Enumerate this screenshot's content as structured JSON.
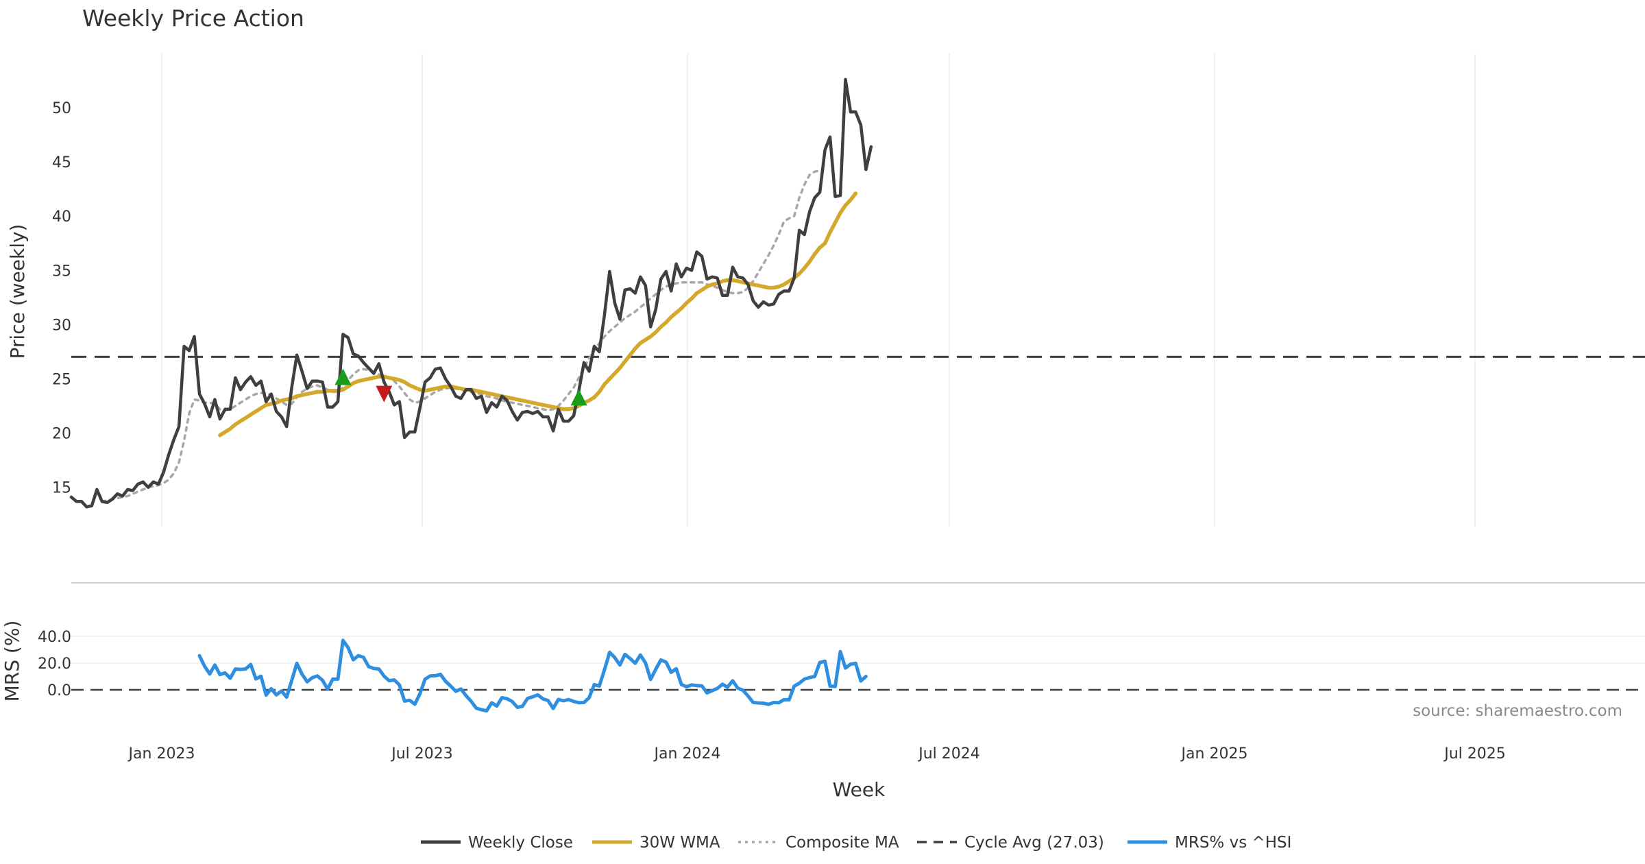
{
  "chart_data": {
    "type": "line",
    "title": "Weekly Price Action",
    "source": "source: sharemaestro.com",
    "xlabel": "Week",
    "x_ticks": [
      "Jan 2023",
      "Jul 2023",
      "Jan 2024",
      "Jul 2024",
      "Jan 2025",
      "Jul 2025"
    ],
    "price_panel": {
      "ylabel": "Price (weekly)",
      "ylim": [
        11.5,
        54.5
      ],
      "y_ticks": [
        "15",
        "20",
        "25",
        "30",
        "35",
        "40",
        "45",
        "50"
      ],
      "series": [
        {
          "name": "Weekly Close",
          "color": "#3f3f3f",
          "style": "solid",
          "values": [
            14.1,
            13.7,
            13.7,
            13.2,
            13.3,
            14.8,
            13.7,
            13.6,
            13.9,
            14.4,
            14.2,
            14.8,
            14.7,
            15.3,
            15.5,
            15.0,
            15.5,
            15.3,
            16.4,
            18.0,
            19.4,
            20.6,
            28.0,
            27.6,
            28.9,
            23.6,
            22.7,
            21.5,
            23.1,
            21.3,
            22.2,
            22.2,
            25.1,
            24.0,
            24.7,
            25.2,
            24.4,
            24.8,
            22.9,
            23.6,
            22.0,
            21.5,
            20.6,
            24.2,
            27.2,
            25.7,
            24.1,
            24.8,
            24.8,
            24.7,
            22.4,
            22.4,
            22.9,
            29.1,
            28.8,
            27.3,
            27.1,
            26.5,
            26.0,
            25.5,
            26.4,
            24.7,
            23.8,
            22.6,
            22.9,
            19.6,
            20.1,
            20.1,
            22.3,
            24.7,
            25.1,
            25.9,
            26.0,
            25.0,
            24.3,
            23.4,
            23.2,
            24.0,
            24.0,
            23.2,
            23.4,
            21.9,
            22.8,
            22.4,
            23.4,
            23.0,
            22.0,
            21.2,
            21.9,
            22.0,
            21.8,
            22.0,
            21.5,
            21.5,
            20.2,
            22.2,
            21.1,
            21.1,
            21.6,
            23.9,
            26.5,
            25.7,
            28.0,
            27.5,
            30.9,
            34.9,
            32.0,
            30.5,
            33.2,
            33.3,
            32.9,
            34.4,
            33.6,
            29.8,
            31.4,
            34.2,
            34.9,
            33.1,
            35.6,
            34.4,
            35.2,
            35.0,
            36.7,
            36.3,
            34.2,
            34.4,
            34.3,
            32.7,
            32.7,
            35.3,
            34.4,
            34.3,
            33.7,
            32.2,
            31.6,
            32.1,
            31.8,
            31.9,
            32.8,
            33.1,
            33.1,
            34.3,
            38.7,
            38.3,
            40.4,
            41.7,
            42.2,
            46.1,
            47.3,
            41.8,
            41.9,
            52.6,
            49.6,
            49.6,
            48.4,
            44.3,
            46.4
          ]
        },
        {
          "name": "30W WMA",
          "color": "#d4a82a",
          "style": "solid",
          "start_index": 29,
          "values": [
            19.8,
            20.1,
            20.4,
            20.8,
            21.1,
            21.4,
            21.7,
            22.0,
            22.3,
            22.6,
            22.7,
            22.8,
            23.0,
            23.1,
            23.2,
            23.4,
            23.5,
            23.6,
            23.7,
            23.8,
            23.8,
            23.9,
            23.9,
            23.9,
            24.0,
            24.3,
            24.6,
            24.8,
            24.9,
            25.0,
            25.1,
            25.2,
            25.2,
            25.1,
            25.0,
            24.9,
            24.7,
            24.4,
            24.2,
            24.0,
            23.9,
            24.0,
            24.1,
            24.2,
            24.3,
            24.3,
            24.2,
            24.1,
            24.0,
            24.0,
            23.9,
            23.8,
            23.7,
            23.6,
            23.5,
            23.4,
            23.3,
            23.2,
            23.1,
            23.0,
            22.9,
            22.8,
            22.7,
            22.6,
            22.5,
            22.4,
            22.3,
            22.2,
            22.2,
            22.3,
            22.5,
            22.8,
            23.0,
            23.3,
            23.8,
            24.5,
            25.0,
            25.5,
            26.0,
            26.6,
            27.2,
            27.8,
            28.3,
            28.6,
            28.9,
            29.3,
            29.8,
            30.2,
            30.7,
            31.1,
            31.5,
            32.0,
            32.4,
            32.9,
            33.2,
            33.5,
            33.7,
            33.8,
            34.0,
            34.1,
            34.1,
            34.0,
            33.9,
            33.8,
            33.7,
            33.6,
            33.5,
            33.4,
            33.4,
            33.5,
            33.7,
            34.0,
            34.3,
            34.7,
            35.2,
            35.8,
            36.5,
            37.1,
            37.5,
            38.5,
            39.4,
            40.3,
            41.0,
            41.5,
            42.1
          ]
        },
        {
          "name": "Composite MA",
          "color": "#a8a8a8",
          "style": "dotted",
          "start_index": 6,
          "values": [
            13.7,
            13.8,
            13.9,
            14.0,
            14.1,
            14.2,
            14.4,
            14.6,
            14.8,
            15.0,
            15.1,
            15.2,
            15.4,
            15.7,
            16.3,
            17.3,
            19.3,
            21.8,
            23.1,
            23.0,
            22.8,
            22.8,
            22.7,
            22.2,
            22.1,
            22.2,
            22.5,
            22.8,
            23.1,
            23.4,
            23.6,
            23.7,
            23.7,
            23.5,
            23.2,
            22.9,
            22.6,
            22.7,
            23.3,
            23.8,
            24.1,
            24.3,
            24.4,
            24.2,
            24.0,
            23.8,
            23.8,
            24.2,
            24.9,
            25.4,
            25.8,
            25.9,
            25.8,
            25.6,
            25.4,
            25.3,
            25.1,
            24.8,
            24.3,
            23.7,
            23.1,
            22.8,
            22.9,
            23.2,
            23.5,
            23.8,
            24.0,
            24.1,
            24.2,
            24.1,
            24.0,
            23.9,
            23.8,
            23.7,
            23.6,
            23.4,
            23.3,
            23.2,
            23.0,
            22.9,
            22.8,
            22.7,
            22.6,
            22.5,
            22.4,
            22.3,
            22.2,
            22.1,
            22.2,
            22.5,
            23.0,
            23.6,
            24.2,
            25.1,
            26.0,
            26.9,
            27.6,
            28.3,
            28.9,
            29.4,
            29.8,
            30.2,
            30.6,
            30.9,
            31.2,
            31.6,
            32.0,
            32.4,
            32.8,
            33.2,
            33.5,
            33.7,
            33.8,
            33.9,
            33.9,
            33.9,
            33.9,
            33.9,
            33.7,
            33.6,
            33.4,
            33.2,
            33.0,
            32.9,
            32.9,
            33.0,
            33.4,
            34.0,
            34.8,
            35.6,
            36.4,
            37.3,
            38.3,
            39.5,
            39.8,
            40.0,
            41.7,
            42.9,
            43.8,
            44.1,
            44.2
          ]
        },
        {
          "name": "Cycle Avg (27.03)",
          "color": "#3f3f3f",
          "style": "dashed",
          "value": 27.03
        }
      ],
      "signals": [
        {
          "type": "buy",
          "index": 53,
          "value": 25.2,
          "color": "#1a9e1a"
        },
        {
          "type": "sell",
          "index": 61,
          "value": 23.6,
          "color": "#c41a1a"
        },
        {
          "type": "buy",
          "index": 99,
          "value": 23.3,
          "color": "#1a9e1a"
        }
      ]
    },
    "mrs_panel": {
      "ylabel": "MRS (%)",
      "ylim": [
        -20,
        44
      ],
      "y_ticks": [
        "40.0",
        "20.0",
        "0.0"
      ],
      "zero_line": 0,
      "series": [
        {
          "name": "MRS% vs ^HSI",
          "color": "#2e8fe0",
          "style": "solid",
          "start_index": 25,
          "values": [
            25.5,
            17.6,
            11.9,
            18.6,
            11.4,
            12.7,
            8.7,
            15.6,
            15.3,
            15.6,
            19.0,
            8.1,
            10.2,
            -3.9,
            0.8,
            -3.8,
            -0.8,
            -5.5,
            7.0,
            19.8,
            11.8,
            6.0,
            9.1,
            10.4,
            7.2,
            0.5,
            8.0,
            8.0,
            37.0,
            31.6,
            22.5,
            25.6,
            24.3,
            17.4,
            16.0,
            15.6,
            10.2,
            6.9,
            7.4,
            3.7,
            -8.4,
            -7.8,
            -10.8,
            -3.0,
            7.9,
            10.4,
            10.6,
            11.6,
            6.4,
            2.8,
            -1.1,
            0.6,
            -4.4,
            -8.6,
            -13.7,
            -14.9,
            -15.7,
            -9.7,
            -12.1,
            -5.9,
            -6.6,
            -8.8,
            -13.1,
            -12.3,
            -6.4,
            -5.2,
            -3.8,
            -6.8,
            -8.0,
            -13.9,
            -7.2,
            -8.2,
            -7.3,
            -8.7,
            -9.6,
            -9.5,
            -5.9,
            3.9,
            2.9,
            15.0,
            28.1,
            24.2,
            18.6,
            26.6,
            23.4,
            19.9,
            26.1,
            20.1,
            7.8,
            15.4,
            22.4,
            20.8,
            13.1,
            15.8,
            4.0,
            2.3,
            3.7,
            3.2,
            3.0,
            -2.3,
            -0.6,
            1.1,
            4.2,
            2.0,
            6.8,
            1.3,
            -0.3,
            -4.6,
            -9.4,
            -9.8,
            -10.0,
            -10.9,
            -9.5,
            -9.7,
            -7.4,
            -7.5,
            2.7,
            5.0,
            8.0,
            9.2,
            10.0,
            20.5,
            21.4,
            2.8,
            2.5,
            28.6,
            16.3,
            19.2,
            19.8,
            6.6,
            10.0
          ]
        }
      ]
    },
    "legend": {
      "placement": "bottom-center",
      "entries": [
        {
          "label": "Weekly Close",
          "color": "#3f3f3f",
          "style": "solid"
        },
        {
          "label": "30W WMA",
          "color": "#d4a82a",
          "style": "solid"
        },
        {
          "label": "Composite MA",
          "color": "#a8a8a8",
          "style": "dotted"
        },
        {
          "label": "Cycle Avg (27.03)",
          "color": "#3f3f3f",
          "style": "dashed"
        },
        {
          "label": "MRS% vs ^HSI",
          "color": "#2e8fe0",
          "style": "solid"
        }
      ]
    }
  }
}
